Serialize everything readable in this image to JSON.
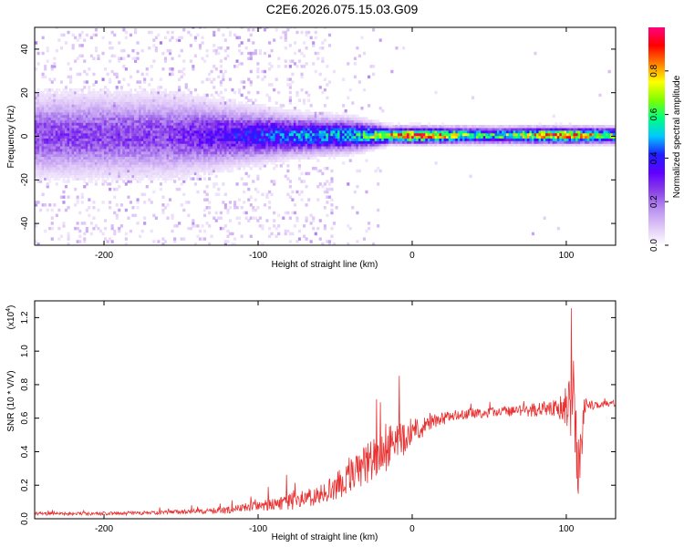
{
  "title": "C2E6.2026.075.15.03.G09",
  "chart_data": [
    {
      "type": "heatmap",
      "xlabel": "Height of straight line (km)",
      "ylabel": "Frequency (Hz)",
      "xlim": [
        -245,
        132
      ],
      "ylim": [
        -50,
        50
      ],
      "xticks": [
        -200,
        -100,
        0,
        100
      ],
      "yticks": [
        -40,
        -20,
        0,
        20,
        40
      ],
      "colorbar": {
        "label": "Normalized spectral amplitude",
        "range": [
          0,
          1
        ],
        "ticks": [
          0.0,
          0.2,
          0.4,
          0.6,
          0.8
        ],
        "tick_labels": [
          "0.0",
          "0.2",
          "0.4",
          "0.6",
          "0.8"
        ],
        "colormap": [
          "#ffffff",
          "#e0c8f8",
          "#b890f0",
          "#8a40e8",
          "#6000ff",
          "#2020ff",
          "#00c8ff",
          "#00ff80",
          "#80ff00",
          "#ffff00",
          "#ff8000",
          "#ff0000",
          "#ff0080"
        ]
      },
      "description_points": [
        {
          "x": -240,
          "peak": 0.25,
          "width": 10
        },
        {
          "x": -160,
          "peak": 0.25,
          "width": 10
        },
        {
          "x": -115,
          "peak": 0.35,
          "width": 7
        },
        {
          "x": -80,
          "peak": 0.45,
          "width": 5
        },
        {
          "x": -40,
          "peak": 0.5,
          "width": 4
        },
        {
          "x": -15,
          "peak": 0.75,
          "width": 2
        },
        {
          "x": 0,
          "peak": 0.9,
          "width": 2
        },
        {
          "x": 50,
          "peak": 0.55,
          "width": 2
        },
        {
          "x": 95,
          "peak": 0.85,
          "width": 2
        },
        {
          "x": 130,
          "peak": 0.65,
          "width": 2
        }
      ]
    },
    {
      "type": "line",
      "xlabel": "Height of straight line (km)",
      "ylabel": "SNR (10 * V/V)",
      "y_multiplier": "(x10",
      "y_multiplier_exp": "4",
      "y_multiplier_close": ")",
      "xlim": [
        -245,
        132
      ],
      "ylim": [
        0,
        1.3
      ],
      "xticks": [
        -200,
        -100,
        0,
        100
      ],
      "yticks": [
        0.0,
        0.2,
        0.4,
        0.6,
        0.8,
        1.0,
        1.2
      ],
      "ytick_labels": [
        "0.0",
        "0.2",
        "0.4",
        "0.6",
        "0.8",
        "1.0",
        "1.2"
      ],
      "color": "#e83030",
      "x": [
        -245,
        -200,
        -150,
        -120,
        -100,
        -80,
        -60,
        -40,
        -30,
        -20,
        -10,
        0,
        10,
        20,
        30,
        40,
        60,
        80,
        95,
        100,
        105,
        108,
        112,
        120,
        132
      ],
      "y": [
        0.03,
        0.03,
        0.04,
        0.05,
        0.08,
        0.1,
        0.14,
        0.25,
        0.32,
        0.4,
        0.45,
        0.52,
        0.57,
        0.6,
        0.62,
        0.63,
        0.64,
        0.65,
        0.66,
        0.67,
        0.7,
        0.3,
        0.68,
        0.68,
        0.69
      ],
      "noise": [
        0.01,
        0.01,
        0.012,
        0.02,
        0.03,
        0.05,
        0.06,
        0.1,
        0.12,
        0.14,
        0.12,
        0.08,
        0.06,
        0.04,
        0.03,
        0.03,
        0.03,
        0.04,
        0.06,
        0.12,
        0.25,
        0.3,
        0.05,
        0.02,
        0.02
      ]
    }
  ]
}
